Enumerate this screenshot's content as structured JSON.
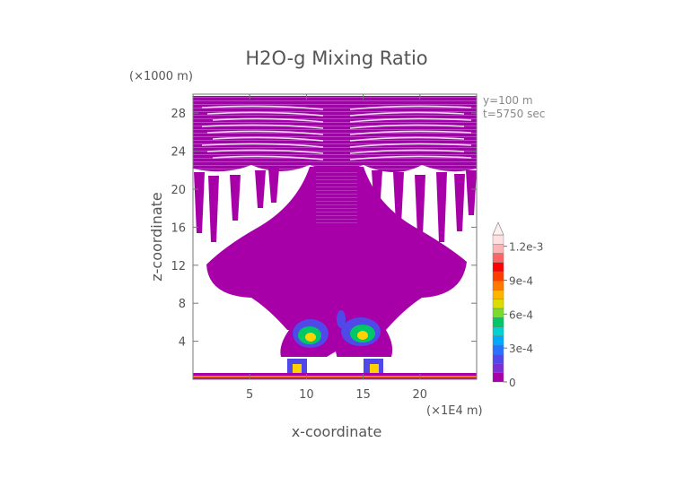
{
  "chart_data": {
    "type": "heatmap",
    "title": "H2O-g Mixing Ratio",
    "xlabel": "x-coordinate",
    "ylabel": "z-coordinate",
    "x_unit": "(×1E4 m)",
    "y_unit": "(×1000 m)",
    "info_lines": [
      "y=100 m",
      "t=5750 sec"
    ],
    "xlim": [
      0,
      25
    ],
    "ylim": [
      0,
      30
    ],
    "x_ticks": [
      5,
      10,
      15,
      20
    ],
    "y_ticks": [
      4,
      8,
      12,
      16,
      20,
      24,
      28
    ],
    "x_tick_labels": [
      "5",
      "10",
      "15",
      "20"
    ],
    "y_tick_labels": [
      "4",
      "8",
      "12",
      "16",
      "20",
      "24",
      "28"
    ],
    "colorbar": {
      "min": 0,
      "max": 0.0013,
      "labels": [
        "0",
        "3e-4",
        "6e-4",
        "9e-4",
        "1.2e-3"
      ],
      "label_values": [
        0,
        0.0003,
        0.0006,
        0.0009,
        0.0012
      ],
      "colors": [
        "#a800a8",
        "#7b2ed1",
        "#5048e8",
        "#2872ff",
        "#00a8ff",
        "#00d2d2",
        "#00c864",
        "#78dc28",
        "#dcdc00",
        "#ffb400",
        "#ff7800",
        "#ff3c00",
        "#ff0000",
        "#ff6464",
        "#ffb4b4",
        "#ffe0e0"
      ]
    },
    "colors": {
      "background_fill": "#a800a8",
      "low": "#5048e8",
      "mid": "#00c864",
      "high": "#ffd200",
      "peak": "#ff7800"
    }
  }
}
